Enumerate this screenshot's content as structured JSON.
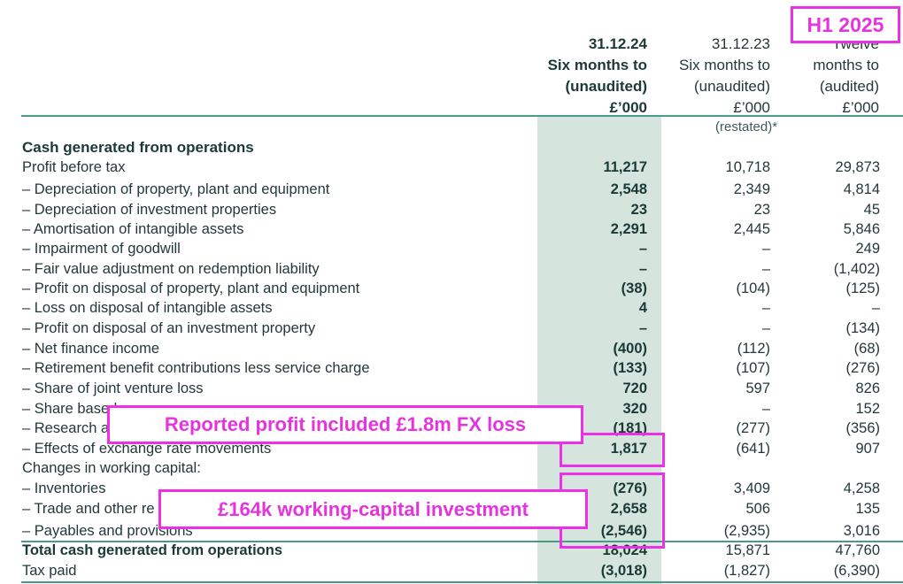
{
  "columns": [
    {
      "lines": [
        "31.12.24",
        "Six months to",
        "(unaudited)",
        "£’000"
      ]
    },
    {
      "lines": [
        "31.12.23",
        "Six months to",
        "(unaudited)",
        "£’000"
      ],
      "note": "(restated)*"
    },
    {
      "lines": [
        "Twelve",
        "months to",
        "(audited)",
        "£’000"
      ]
    }
  ],
  "section_title": "Cash generated from operations",
  "rows": [
    {
      "label": "Profit before tax",
      "v1": "11,217",
      "v2": "10,718",
      "v3": "29,873"
    },
    {
      "label": "– Depreciation of property, plant and equipment",
      "v1": "2,548",
      "v2": "2,349",
      "v3": "4,814"
    },
    {
      "label": "– Depreciation of investment properties",
      "v1": "23",
      "v2": "23",
      "v3": "45"
    },
    {
      "label": "– Amortisation of intangible assets",
      "v1": "2,291",
      "v2": "2,445",
      "v3": "5,846"
    },
    {
      "label": "– Impairment of goodwill",
      "v1": "–",
      "v2": "–",
      "v3": "249"
    },
    {
      "label": "– Fair value adjustment on redemption liability",
      "v1": "–",
      "v2": "–",
      "v3": "(1,402)"
    },
    {
      "label": "– Profit on disposal of property, plant and equipment",
      "v1": "(38)",
      "v2": "(104)",
      "v3": "(125)"
    },
    {
      "label": "– Loss on disposal of intangible assets",
      "v1": "4",
      "v2": "–",
      "v3": "–"
    },
    {
      "label": "– Profit on disposal of an investment property",
      "v1": "–",
      "v2": "–",
      "v3": "(134)"
    },
    {
      "label": "– Net finance income",
      "v1": "(400)",
      "v2": "(112)",
      "v3": "(68)"
    },
    {
      "label": "– Retirement benefit contributions less service charge",
      "v1": "(133)",
      "v2": "(107)",
      "v3": "(276)"
    },
    {
      "label": "– Share of joint venture loss",
      "v1": "720",
      "v2": "597",
      "v3": "826"
    },
    {
      "label": "– Share based",
      "v1": "320",
      "v2": "–",
      "v3": "152"
    },
    {
      "label": "– Research ar",
      "v1": "(181)",
      "v2": "(277)",
      "v3": "(356)"
    },
    {
      "label": "– Effects of exchange rate movements",
      "v1": "1,817",
      "v2": "(641)",
      "v3": "907"
    },
    {
      "label": "Changes in working capital:",
      "v1": "",
      "v2": "",
      "v3": ""
    },
    {
      "label": "– Inventories",
      "v1": "(276)",
      "v2": "3,409",
      "v3": "4,258"
    },
    {
      "label": "– Trade and other re",
      "v1": "2,658",
      "v2": "506",
      "v3": "135"
    },
    {
      "label": "– Payables and provisions",
      "v1": "(2,546)",
      "v2": "(2,935)",
      "v3": "3,016"
    },
    {
      "label": "Total cash generated from operations",
      "v1": "18,024",
      "v2": "15,871",
      "v3": "47,760",
      "total": true
    },
    {
      "label": "Tax paid",
      "v1": "(3,018)",
      "v2": "(1,827)",
      "v3": "(6,390)"
    }
  ],
  "annotations": {
    "period_tag": "H1 2025",
    "fx_note": "Reported profit included £1.8m FX loss",
    "wc_note": "£164k working-capital investment"
  },
  "colors": {
    "highlight_column": "#d5e4dd",
    "rule": "#4a9a86",
    "annotation": "#ee2fe8",
    "text": "#1f3a3a"
  }
}
